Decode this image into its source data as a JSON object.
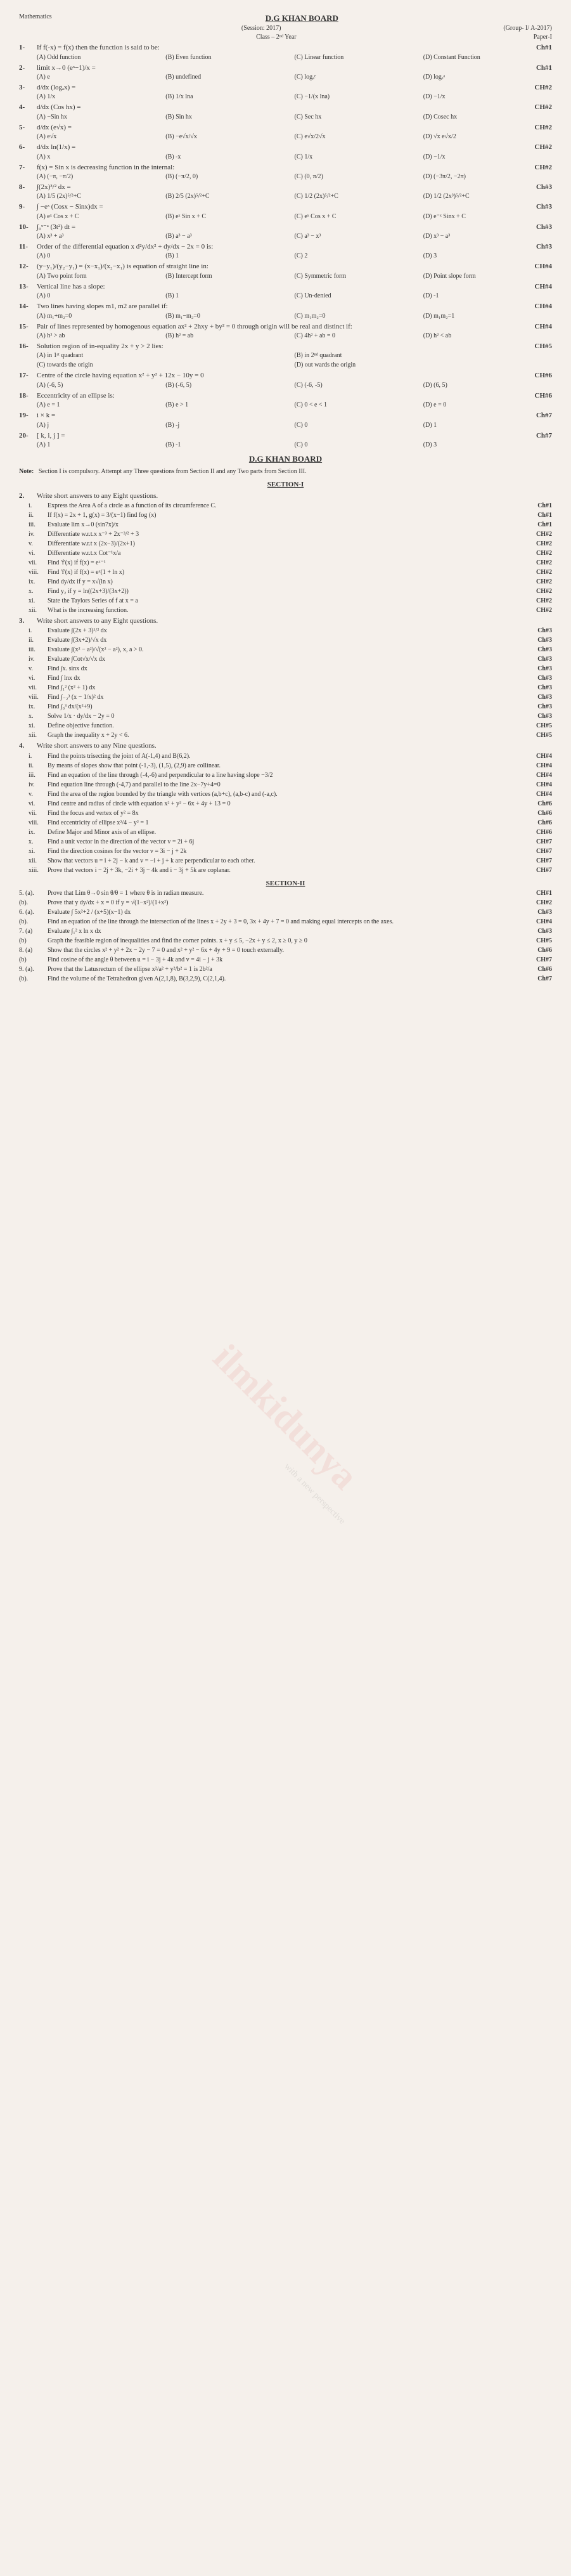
{
  "header": {
    "title": "D.G KHAN BOARD",
    "subject": "Mathematics",
    "session": "(Session: 2017)",
    "group": "(Group- I/ A-2017)",
    "class": "Class – 2ⁿᵈ Year",
    "paper": "Paper-I"
  },
  "mcq": [
    {
      "n": "1-",
      "q": "If f(-x) = f(x) then the function is said to be:",
      "ch": "Ch#1",
      "opts": [
        "(A) Odd function",
        "(B) Even function",
        "(C) Linear function",
        "(D) Constant Function"
      ]
    },
    {
      "n": "2-",
      "q": "limit x→0 (eˣ−1)/x =",
      "ch": "Ch#1",
      "opts": [
        "(A) e",
        "(B) undefined",
        "(C) logₐᵉ",
        "(D) logₑᵃ"
      ]
    },
    {
      "n": "3-",
      "q": "d/dx (logₐx) =",
      "ch": "CH#2",
      "opts": [
        "(A) 1/x",
        "(B) 1/x lna",
        "(C) −1/(x lna)",
        "(D) −1/x"
      ]
    },
    {
      "n": "4-",
      "q": "d/dx (Cos hx) =",
      "ch": "CH#2",
      "opts": [
        "(A) −Sin hx",
        "(B) Sin hx",
        "(C) Sec hx",
        "(D) Cosec hx"
      ]
    },
    {
      "n": "5-",
      "q": "d/dx (e√x) =",
      "ch": "CH#2",
      "opts": [
        "(A) e√x",
        "(B) −e√x/√x",
        "(C) e√x/2√x",
        "(D) √x e√x/2"
      ]
    },
    {
      "n": "6-",
      "q": "d/dx ln(1/x) =",
      "ch": "CH#2",
      "opts": [
        "(A) x",
        "(B) -x",
        "(C) 1/x",
        "(D) −1/x"
      ]
    },
    {
      "n": "7-",
      "q": "f(x) = Sin x is decreasing function in the internal:",
      "ch": "CH#2",
      "opts": [
        "(A) (−π, −π/2)",
        "(B) (−π/2, 0)",
        "(C) (0, π/2)",
        "(D) (−3π/2, −2π)"
      ]
    },
    {
      "n": "8-",
      "q": "∫(2x)³/² dx =",
      "ch": "Ch#3",
      "opts": [
        "(A) 1/5 (2x)⁵/²+C",
        "(B) 2/5 (2x)⁵/²+C",
        "(C) 1/2 (2x)⁵/²+C",
        "(D) 1/2 (2x³)⁵/²+C"
      ]
    },
    {
      "n": "9-",
      "q": "∫ −eˣ (Cosx − Sinx)dx =",
      "ch": "Ch#3",
      "opts": [
        "(A) eˣ Cos x + C",
        "(B) eˣ Sin x + C",
        "(C) eˣ Cos x + C",
        "(D) e⁻ˣ Sinx + C"
      ]
    },
    {
      "n": "10-",
      "q": "∫₀ˣ⁻ᵃ (3t²) dt =",
      "ch": "Ch#3",
      "opts": [
        "(A) x³ + a³",
        "(B) a³ − a³",
        "(C) a³ − x³",
        "(D) x³ − a³"
      ]
    },
    {
      "n": "11-",
      "q": "Order of the differential equation x d²y/dx² + dy/dx − 2x = 0 is:",
      "ch": "Ch#3",
      "opts": [
        "(A) 0",
        "(B) 1",
        "(C) 2",
        "(D) 3"
      ]
    },
    {
      "n": "12-",
      "q": "(y−y₁)/(y₂−y₁) = (x−x₁)/(x₂−x₁) is equation of straight line in:",
      "ch": "CH#4",
      "opts": [
        "(A) Two point form",
        "(B) Intercept form",
        "(C) Symmetric form",
        "(D) Point slope form"
      ]
    },
    {
      "n": "13-",
      "q": "Vertical line has a slope:",
      "ch": "CH#4",
      "opts": [
        "(A) 0",
        "(B) 1",
        "(C) Un-denied",
        "(D) -1"
      ]
    },
    {
      "n": "14-",
      "q": "Two lines having slopes m1, m2 are parallel if:",
      "ch": "CH#4",
      "opts": [
        "(A) m₁+m₂=0",
        "(B) m₁−m₂=0",
        "(C) m₁m₂=0",
        "(D) m₁m₂=1"
      ]
    },
    {
      "n": "15-",
      "q": "Pair of lines represented by homogenous equation ax² + 2hxy + by² = 0 through origin will be real and distinct if:",
      "ch": "CH#4",
      "opts": [
        "(A) h² > ab",
        "(B) h² = ab",
        "(C) 4h² + ab = 0",
        "(D) h² < ab"
      ]
    },
    {
      "n": "16-",
      "q": "Solution region of in-equality 2x + y > 2 lies:",
      "ch": "CH#5",
      "opts": [
        "(A) in 1ˢᵗ quadrant",
        "",
        "(B) in 2ⁿᵈ quadrant",
        ""
      ]
    },
    {
      "n": "",
      "q": "",
      "ch": "",
      "opts": [
        "(C) towards the origin",
        "",
        "(D) out wards the origin",
        ""
      ]
    },
    {
      "n": "17-",
      "q": "Centre of the circle having equation x² + y² + 12x − 10y = 0",
      "ch": "CH#6",
      "opts": [
        "(A) (-6, 5)",
        "(B) (-6, 5)",
        "(C) (-6, -5)",
        "(D) (6, 5)"
      ]
    },
    {
      "n": "18-",
      "q": "Eccentricity of an ellipse is:",
      "ch": "CH#6",
      "opts": [
        "(A) e = 1",
        "(B) e > 1",
        "(C) 0 < e < 1",
        "(D) e = 0"
      ]
    },
    {
      "n": "19-",
      "q": "i × k =",
      "ch": "Ch#7",
      "opts": [
        "(A) j",
        "(B) -j",
        "(C) 0",
        "(D) 1"
      ]
    },
    {
      "n": "20-",
      "q": "[ k, i, j ] =",
      "ch": "Ch#7",
      "opts": [
        "(A) 1",
        "(B) -1",
        "(C) 0",
        "(D) 3"
      ]
    }
  ],
  "note": "Section I is compulsory. Attempt any Three questions from Section II and any Two parts from Section III.",
  "section1_title": "SECTION-I",
  "q2": {
    "head": "Write short answers to any Eight questions.",
    "items": [
      {
        "n": "i.",
        "t": "Express the Area A of a circle as a function of its circumference C.",
        "ch": "Ch#1"
      },
      {
        "n": "ii.",
        "t": "If f(x) = 2x + 1, g(x) = 3/(x−1) find fog (x)",
        "ch": "Ch#1"
      },
      {
        "n": "iii.",
        "t": "Evaluate lim x→0 (sin7x)/x",
        "ch": "Ch#1"
      },
      {
        "n": "iv.",
        "t": "Differentiate w.r.t.x  x⁻³ + 2x⁻³/² + 3",
        "ch": "CH#2"
      },
      {
        "n": "v.",
        "t": "Differentiate w.r.t x (2x−3)/(2x+1)",
        "ch": "CH#2"
      },
      {
        "n": "vi.",
        "t": "Differentiate w.r.t.x Cot⁻¹x/a",
        "ch": "CH#2"
      },
      {
        "n": "vii.",
        "t": "Find 'f'(x) if f(x) = eˣ⁻¹",
        "ch": "CH#2"
      },
      {
        "n": "viii.",
        "t": "Find 'f'(x) if f(x) = eˣ(1 + ln x)",
        "ch": "CH#2"
      },
      {
        "n": "ix.",
        "t": "Find dy/dx if y = x√(ln x)",
        "ch": "CH#2"
      },
      {
        "n": "x.",
        "t": "Find y₂ if y = ln((2x+3)/(3x+2))",
        "ch": "CH#2"
      },
      {
        "n": "xi.",
        "t": "State the Taylors Series of f at x = a",
        "ch": "CH#2"
      },
      {
        "n": "xii.",
        "t": "What is the increasing function.",
        "ch": "CH#2"
      }
    ]
  },
  "q3": {
    "head": "Write short answers to any Eight questions.",
    "items": [
      {
        "n": "i.",
        "t": "Evaluate ∫(2x + 3)¹/² dx",
        "ch": "Ch#3"
      },
      {
        "n": "ii.",
        "t": "Evaluate ∫(3x+2)/√x dx",
        "ch": "Ch#3"
      },
      {
        "n": "iii.",
        "t": "Evaluate ∫(x² − a²)/√(x² − a²), x, a > 0.",
        "ch": "Ch#3"
      },
      {
        "n": "iv.",
        "t": "Evaluate ∫Cot√x/√x dx",
        "ch": "Ch#3"
      },
      {
        "n": "v.",
        "t": "Find ∫x. sinx dx",
        "ch": "Ch#3"
      },
      {
        "n": "vi.",
        "t": "Find ∫ lnx dx",
        "ch": "Ch#3"
      },
      {
        "n": "vii.",
        "t": "Find ∫₁² (x² + 1) dx",
        "ch": "Ch#3"
      },
      {
        "n": "viii.",
        "t": "Find ∫₋₂³ (x − 1/x)² dx",
        "ch": "Ch#3"
      },
      {
        "n": "ix.",
        "t": "Find ∫₀³ dx/(x²+9)",
        "ch": "Ch#3"
      },
      {
        "n": "x.",
        "t": "Solve 1/x · dy/dx − 2y = 0",
        "ch": "Ch#3"
      },
      {
        "n": "xi.",
        "t": "Define objective function.",
        "ch": "CH#5"
      },
      {
        "n": "xii.",
        "t": "Graph the inequality x + 2y < 6.",
        "ch": "CH#5"
      }
    ]
  },
  "q4": {
    "head": "Write short answers to any Nine questions.",
    "items": [
      {
        "n": "i.",
        "t": "Find the points trisecting the joint of A(-1,4) and B(6,2).",
        "ch": "CH#4"
      },
      {
        "n": "ii.",
        "t": "By means of slopes show that point (-1,-3), (1,5), (2,9) are collinear.",
        "ch": "CH#4"
      },
      {
        "n": "iii.",
        "t": "Find an equation of the line through (-4,-6) and perpendicular to a line having slope −3/2",
        "ch": "CH#4"
      },
      {
        "n": "iv.",
        "t": "Find equation line through (-4,7) and parallel to the line 2x−7y+4=0",
        "ch": "CH#4"
      },
      {
        "n": "v.",
        "t": "Find the area of the region bounded by the triangle with vertices (a,b+c), (a,b-c) and (-a,c).",
        "ch": "CH#4"
      },
      {
        "n": "vi.",
        "t": "Find centre and radius of circle with equation x² + y² − 6x + 4y + 13 = 0",
        "ch": "Ch#6"
      },
      {
        "n": "vii.",
        "t": "Find the focus and vertex of y² = 8x",
        "ch": "Ch#6"
      },
      {
        "n": "viii.",
        "t": "Find eccentricity of ellipse x²/4 − y² = 1",
        "ch": "Ch#6"
      },
      {
        "n": "ix.",
        "t": "Define Major and Minor axis of an ellipse.",
        "ch": "CH#6"
      },
      {
        "n": "x.",
        "t": "Find a unit vector in the direction of the vector v = 2i + 6j",
        "ch": "CH#7"
      },
      {
        "n": "xi.",
        "t": "Find the direction cosines for the vector v = 3i − j + 2k",
        "ch": "CH#7"
      },
      {
        "n": "xii.",
        "t": "Show that vectors u = i + 2j − k and v = −i + j + k are perpendicular to each other.",
        "ch": "CH#7"
      },
      {
        "n": "xiii.",
        "t": "Prove that vectors i − 2j + 3k, −2i + 3j − 4k and i − 3j + 5k are coplanar.",
        "ch": "CH#7"
      }
    ]
  },
  "section2_title": "SECTION-II",
  "longq": [
    {
      "n": "5. (a).",
      "t": "Prove that  Lim θ→0 sin θ/θ = 1 where θ is in radian measure.",
      "ch": "CH#1"
    },
    {
      "n": "(b).",
      "t": "Prove that y dy/dx + x = 0 if y = √(1−x²)/(1+x²)",
      "ch": "CH#2"
    },
    {
      "n": "6. (a).",
      "t": "Evaluate ∫ 5x²+2 / (x+5)(x−1) dx",
      "ch": "Ch#3"
    },
    {
      "n": "(b).",
      "t": "Find an equation of the line through the intersection of the lines x + 2y + 3 = 0, 3x + 4y + 7 = 0 and making equal intercepts on the axes.",
      "ch": "CH#4"
    },
    {
      "n": "7. (a)",
      "t": "Evaluate ∫₁² x ln x dx",
      "ch": "Ch#3"
    },
    {
      "n": "(b)",
      "t": "Graph the feasible region of inequalities and find the corner points.  x + y ≤ 5,  −2x + y ≤ 2,  x ≥ 0, y ≥ 0",
      "ch": "CH#5"
    },
    {
      "n": "8. (a)",
      "t": "Show that the circles x² + y² + 2x − 2y − 7 = 0 and x² + y² − 6x + 4y + 9 = 0 touch externally.",
      "ch": "Ch#6"
    },
    {
      "n": "(b)",
      "t": "Find cosine of the angle θ between u = i − 3j + 4k and v = 4i − j + 3k",
      "ch": "CH#7"
    },
    {
      "n": "9. (a).",
      "t": "Prove that the Latusrectum of the ellipse x²/a² + y²/b² = 1 is 2b²/a",
      "ch": "Ch#6"
    },
    {
      "n": "(b).",
      "t": "Find the volume of the Tetrahedron given A(2,1,8), B(3,2,9), C(2,1,4).",
      "ch": "Ch#7"
    }
  ],
  "watermark": "ilmkidunya",
  "watermark2": "with a new perspective"
}
